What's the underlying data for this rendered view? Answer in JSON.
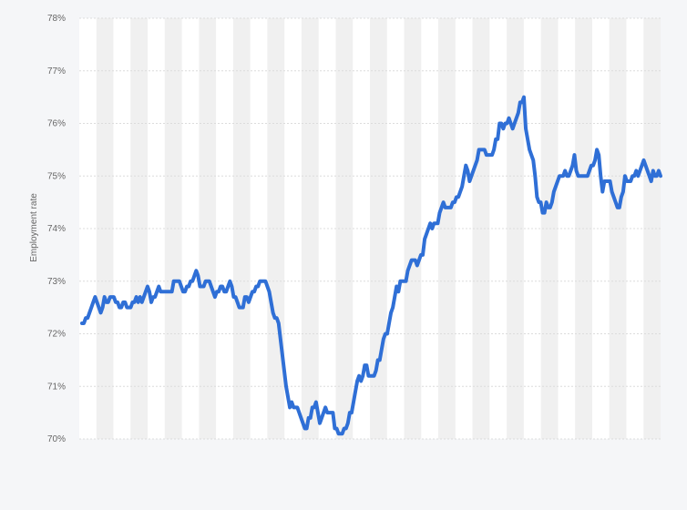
{
  "chart_data": {
    "type": "line",
    "ylabel": "Employment rate",
    "ylim": [
      70,
      78
    ],
    "yticks": [
      70,
      71,
      72,
      73,
      74,
      75,
      76,
      77,
      78
    ],
    "ytick_labels": [
      "70%",
      "71%",
      "72%",
      "73%",
      "74%",
      "75%",
      "76%",
      "77%",
      "78%"
    ],
    "grid": true,
    "legend": "none",
    "colors": {
      "line": "#2f6fd6",
      "grid": "#dcdcdc",
      "stripe": "#f0f0f0",
      "plot_bg": "#ffffff"
    },
    "stripe_count": 34,
    "series": [
      {
        "values": [
          72.2,
          72.2,
          72.3,
          72.3,
          72.4,
          72.5,
          72.6,
          72.7,
          72.6,
          72.5,
          72.4,
          72.5,
          72.7,
          72.6,
          72.6,
          72.7,
          72.7,
          72.7,
          72.6,
          72.6,
          72.5,
          72.5,
          72.6,
          72.6,
          72.5,
          72.5,
          72.5,
          72.6,
          72.6,
          72.7,
          72.6,
          72.7,
          72.6,
          72.7,
          72.8,
          72.9,
          72.8,
          72.6,
          72.7,
          72.7,
          72.8,
          72.9,
          72.8,
          72.8,
          72.8,
          72.8,
          72.8,
          72.8,
          72.8,
          73.0,
          73.0,
          73.0,
          73.0,
          72.9,
          72.8,
          72.8,
          72.9,
          72.9,
          73.0,
          73.0,
          73.1,
          73.2,
          73.1,
          72.9,
          72.9,
          72.9,
          73.0,
          73.0,
          73.0,
          72.9,
          72.8,
          72.7,
          72.8,
          72.8,
          72.9,
          72.9,
          72.8,
          72.8,
          72.9,
          73.0,
          72.9,
          72.7,
          72.7,
          72.6,
          72.5,
          72.5,
          72.5,
          72.7,
          72.7,
          72.6,
          72.7,
          72.8,
          72.8,
          72.9,
          72.9,
          73.0,
          73.0,
          73.0,
          73.0,
          72.9,
          72.8,
          72.6,
          72.4,
          72.3,
          72.3,
          72.2,
          71.9,
          71.6,
          71.3,
          71.0,
          70.8,
          70.6,
          70.7,
          70.6,
          70.6,
          70.6,
          70.5,
          70.4,
          70.3,
          70.2,
          70.2,
          70.4,
          70.4,
          70.6,
          70.6,
          70.7,
          70.5,
          70.3,
          70.4,
          70.5,
          70.6,
          70.5,
          70.5,
          70.5,
          70.5,
          70.2,
          70.2,
          70.1,
          70.1,
          70.1,
          70.2,
          70.2,
          70.3,
          70.5,
          70.5,
          70.7,
          70.9,
          71.1,
          71.2,
          71.1,
          71.2,
          71.4,
          71.4,
          71.2,
          71.2,
          71.2,
          71.2,
          71.3,
          71.5,
          71.5,
          71.7,
          71.9,
          72.0,
          72.0,
          72.2,
          72.4,
          72.5,
          72.7,
          72.9,
          72.8,
          73.0,
          73.0,
          73.0,
          73.0,
          73.2,
          73.3,
          73.4,
          73.4,
          73.4,
          73.3,
          73.4,
          73.5,
          73.5,
          73.8,
          73.9,
          74.0,
          74.1,
          74.0,
          74.1,
          74.1,
          74.1,
          74.3,
          74.4,
          74.5,
          74.4,
          74.4,
          74.4,
          74.4,
          74.5,
          74.5,
          74.6,
          74.6,
          74.7,
          74.8,
          75.0,
          75.2,
          75.1,
          74.9,
          75.0,
          75.1,
          75.2,
          75.3,
          75.5,
          75.5,
          75.5,
          75.5,
          75.4,
          75.4,
          75.4,
          75.4,
          75.5,
          75.7,
          75.7,
          76.0,
          76.0,
          75.9,
          76.0,
          76.0,
          76.1,
          76.0,
          75.9,
          76.0,
          76.1,
          76.2,
          76.4,
          76.4,
          76.5,
          75.9,
          75.7,
          75.5,
          75.4,
          75.3,
          75.0,
          74.6,
          74.5,
          74.5,
          74.3,
          74.3,
          74.5,
          74.4,
          74.4,
          74.5,
          74.7,
          74.8,
          74.9,
          75.0,
          75.0,
          75.0,
          75.1,
          75.0,
          75.0,
          75.1,
          75.2,
          75.4,
          75.1,
          75.0,
          75.0,
          75.0,
          75.0,
          75.0,
          75.0,
          75.1,
          75.2,
          75.2,
          75.3,
          75.5,
          75.4,
          75.0,
          74.7,
          74.9,
          74.9,
          74.9,
          74.9,
          74.7,
          74.6,
          74.5,
          74.4,
          74.4,
          74.6,
          74.7,
          75.0,
          74.9,
          74.9,
          74.9,
          75.0,
          75.0,
          75.1,
          75.0,
          75.1,
          75.2,
          75.3,
          75.2,
          75.1,
          75.0,
          74.9,
          75.1,
          75.0,
          75.0,
          75.1,
          75.0
        ]
      }
    ]
  }
}
